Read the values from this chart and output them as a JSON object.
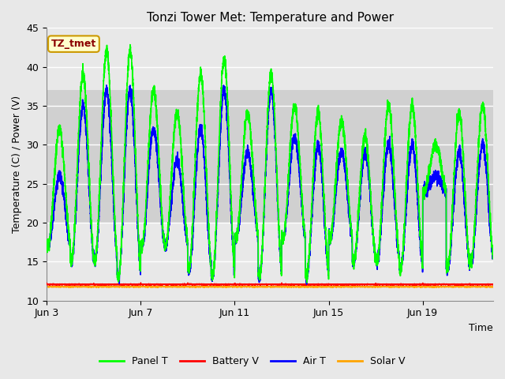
{
  "title": "Tonzi Tower Met: Temperature and Power",
  "xlabel": "Time",
  "ylabel": "Temperature (C) / Power (V)",
  "ylim": [
    10,
    45
  ],
  "yticks": [
    10,
    15,
    20,
    25,
    30,
    35,
    40,
    45
  ],
  "xtick_labels": [
    "Jun 3",
    "Jun 7",
    "Jun 11",
    "Jun 15",
    "Jun 19"
  ],
  "xtick_positions": [
    0,
    4,
    8,
    12,
    16
  ],
  "xlim": [
    0,
    19
  ],
  "annotation_text": "TZ_tmet",
  "annotation_color": "#8B0000",
  "annotation_bg": "#FFFFCC",
  "annotation_border": "#CC9900",
  "panel_t_color": "#00FF00",
  "battery_v_color": "#FF0000",
  "air_t_color": "#0000FF",
  "solar_v_color": "#FFA500",
  "fig_bg_color": "#E8E8E8",
  "plot_bg_color": "#DCDCDC",
  "grid_color": "#FFFFFF",
  "shade_ymin": 20,
  "shade_ymax": 37,
  "shade_color": "#D0D0D0",
  "battery_v_mean": 12.05,
  "solar_v_mean": 11.75
}
